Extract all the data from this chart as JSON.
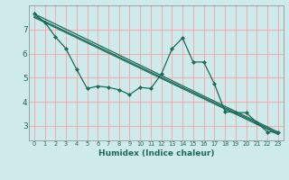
{
  "background_color": "#ceeaea",
  "grid_color": "#f5aaaa",
  "line_color": "#1a6b5a",
  "xlabel": "Humidex (Indice chaleur)",
  "xlim": [
    -0.5,
    23.5
  ],
  "ylim": [
    2.4,
    8.0
  ],
  "yticks": [
    3,
    4,
    5,
    6,
    7
  ],
  "xtick_labels": [
    "0",
    "1",
    "2",
    "3",
    "4",
    "5",
    "6",
    "7",
    "8",
    "9",
    "10",
    "11",
    "12",
    "13",
    "14",
    "15",
    "16",
    "17",
    "18",
    "19",
    "20",
    "21",
    "22",
    "23"
  ],
  "main_line": {
    "x": [
      0,
      1,
      2,
      3,
      4,
      5,
      6,
      7,
      8,
      9,
      10,
      11,
      12,
      13,
      14,
      15,
      16,
      17,
      18,
      19,
      20,
      21,
      22,
      23
    ],
    "y": [
      7.65,
      7.3,
      6.7,
      6.2,
      5.35,
      4.55,
      4.65,
      4.6,
      4.5,
      4.3,
      4.6,
      4.55,
      5.15,
      6.2,
      6.65,
      5.65,
      5.65,
      4.75,
      3.6,
      3.55,
      3.55,
      3.15,
      2.75,
      2.75
    ]
  },
  "reg_line1": {
    "x": [
      0,
      23
    ],
    "y": [
      7.65,
      2.75
    ]
  },
  "reg_line2": {
    "x": [
      0,
      23
    ],
    "y": [
      7.5,
      2.65
    ]
  },
  "reg_line3": {
    "x": [
      0,
      23
    ],
    "y": [
      7.55,
      2.7
    ]
  }
}
